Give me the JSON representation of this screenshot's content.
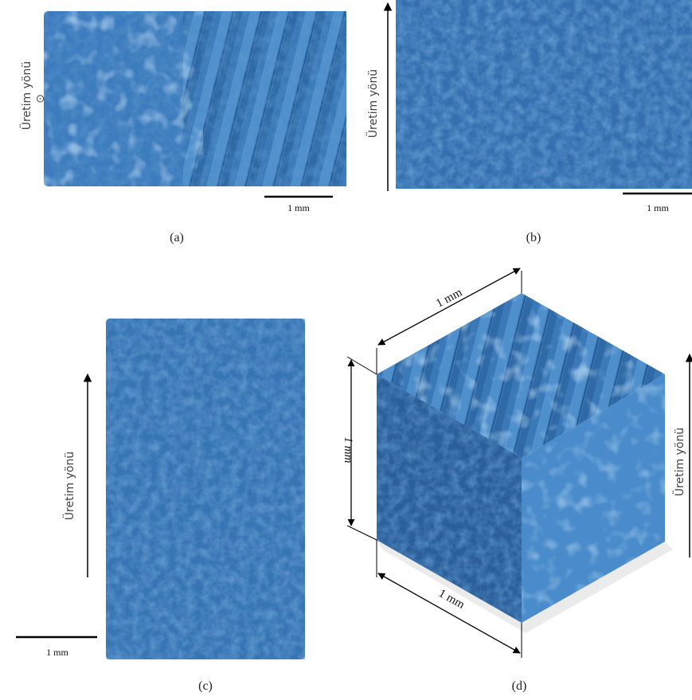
{
  "panels": [
    {
      "label": "(a)",
      "direction_label": "Üretim yönü",
      "direction_symbol": "⊙",
      "scale_label": "1 mm"
    },
    {
      "label": "(b)",
      "direction_label": "Üretim yönü",
      "scale_label": "1 mm"
    },
    {
      "label": "(c)",
      "direction_label": "Üretim yönü",
      "scale_label": "1 mm"
    },
    {
      "label": "(d)",
      "direction_label": "Üretim yönü",
      "dimension_labels": [
        "1 mm",
        "1 mm",
        "1 mm"
      ]
    }
  ]
}
